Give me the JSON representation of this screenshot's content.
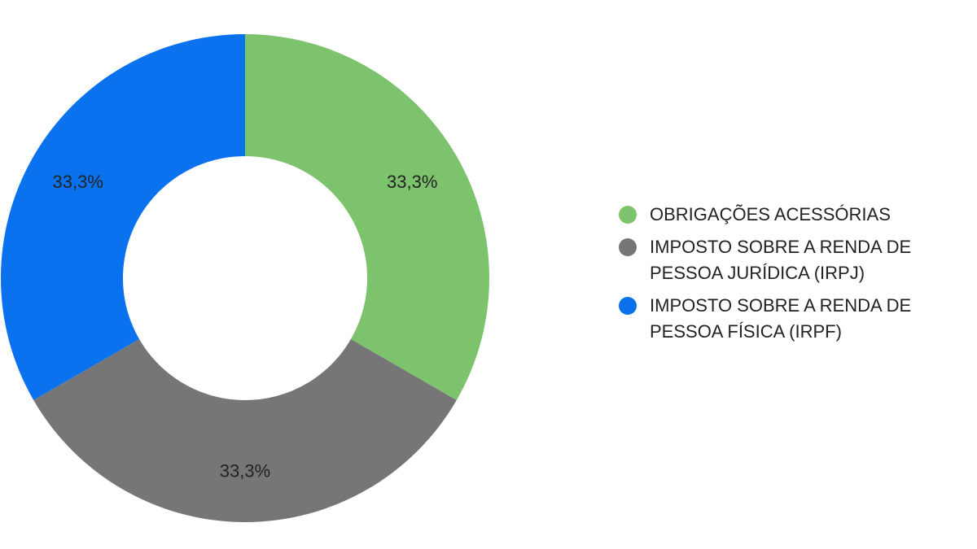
{
  "chart_data": {
    "type": "pie",
    "donut": true,
    "title": "",
    "legend_position": "right",
    "slices": [
      {
        "label": "OBRIGAÇÕES ACESSÓRIAS",
        "value": 33.3,
        "display": "33,3%",
        "color": "#7dc36e"
      },
      {
        "label": "IMPOSTO SOBRE A RENDA DE PESSOA JURÍDICA (IRPJ)",
        "value": 33.3,
        "display": "33,3%",
        "color": "#767676"
      },
      {
        "label": "IMPOSTO SOBRE A RENDA DE PESSOA FÍSICA (IRPF)",
        "value": 33.3,
        "display": "33,3%",
        "color": "#0a72ef"
      }
    ]
  }
}
